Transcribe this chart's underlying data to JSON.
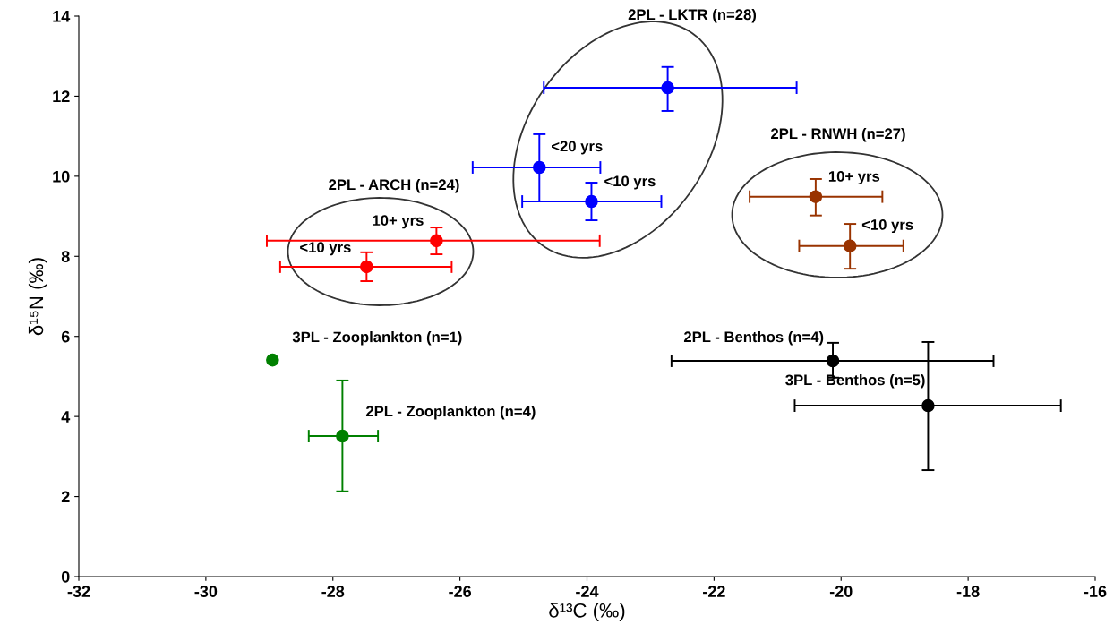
{
  "chart_data": {
    "type": "scatter",
    "xlabel": "δ¹³C (‰)",
    "ylabel": "δ¹⁵N (‰)",
    "xlim": [
      -32,
      -16
    ],
    "xticks": [
      -32,
      -30,
      -28,
      -26,
      -24,
      -22,
      -20,
      -18,
      -16
    ],
    "ylim": [
      0,
      14
    ],
    "yticks": [
      0,
      2,
      4,
      6,
      8,
      10,
      12,
      14
    ],
    "grid": false,
    "marker": "circle",
    "series": [
      {
        "color": "#ff0000",
        "x": [
          -27.47,
          -26.37
        ],
        "values": [
          7.74,
          8.39
        ],
        "errors": [
          [
            7.38,
            8.1
          ],
          [
            8.05,
            8.72
          ]
        ],
        "xerrors": [
          [
            -28.83,
            -26.13
          ],
          [
            -29.04,
            -23.8
          ]
        ]
      },
      {
        "color": "#0000ff",
        "x": [
          -22.73,
          -24.75,
          -23.93
        ],
        "values": [
          12.21,
          10.22,
          9.37
        ],
        "errors": [
          [
            11.63,
            12.73
          ],
          [
            9.37,
            11.05
          ],
          [
            8.9,
            9.84
          ]
        ],
        "xerrors": [
          [
            -24.68,
            -20.7
          ],
          [
            -25.8,
            -23.79
          ],
          [
            -25.02,
            -22.83
          ]
        ]
      },
      {
        "color": "#993300",
        "x": [
          -20.4,
          -19.86
        ],
        "values": [
          9.49,
          8.26
        ],
        "errors": [
          [
            9.02,
            9.93
          ],
          [
            7.69,
            8.81
          ]
        ],
        "xerrors": [
          [
            -21.44,
            -19.35
          ],
          [
            -20.66,
            -19.02
          ]
        ]
      },
      {
        "color": "#008000",
        "x": [
          -28.95,
          -27.85
        ],
        "values": [
          5.41,
          3.51
        ],
        "errors": [
          null,
          [
            2.13,
            4.9
          ]
        ],
        "xerrors": [
          null,
          [
            -28.38,
            -27.29
          ]
        ]
      },
      {
        "color": "#000000",
        "x": [
          -20.13,
          -18.63
        ],
        "values": [
          5.39,
          4.27
        ],
        "errors": [
          [
            4.97,
            5.84
          ],
          [
            2.66,
            5.86
          ]
        ],
        "xerrors": [
          [
            -22.67,
            -17.6
          ],
          [
            -20.73,
            -16.54
          ]
        ]
      }
    ],
    "annotations": [
      "2PL - ARCH (n=24)",
      "2PL - LKTR (n=28)",
      "2PL - RNWH (n=27)",
      {
        "text": "<10 yrs",
        "x": -27.47,
        "y": 7.74
      },
      {
        "text": "10+ yrs",
        "x": -26.37,
        "y": 8.39
      },
      {
        "text": "<20 yrs",
        "x": -24.75,
        "y": 10.22
      },
      {
        "text": "<10 yrs",
        "x": -23.93,
        "y": 9.37
      },
      {
        "text": "10+ yrs",
        "x": -20.4,
        "y": 9.49
      },
      {
        "text": "<10 yrs",
        "x": -19.86,
        "y": 8.26
      },
      {
        "text": "3PL - Zooplankton (n=1)",
        "x": -28.95,
        "y": 5.41
      },
      {
        "text": "2PL - Zooplankton (n=4)",
        "x": -27.85,
        "y": 3.51
      },
      {
        "text": "2PL - Benthos (n=4)",
        "x": -20.13,
        "y": 5.39
      },
      {
        "text": "3PL - Benthos (n=5)",
        "x": -18.63,
        "y": 4.27
      }
    ]
  }
}
